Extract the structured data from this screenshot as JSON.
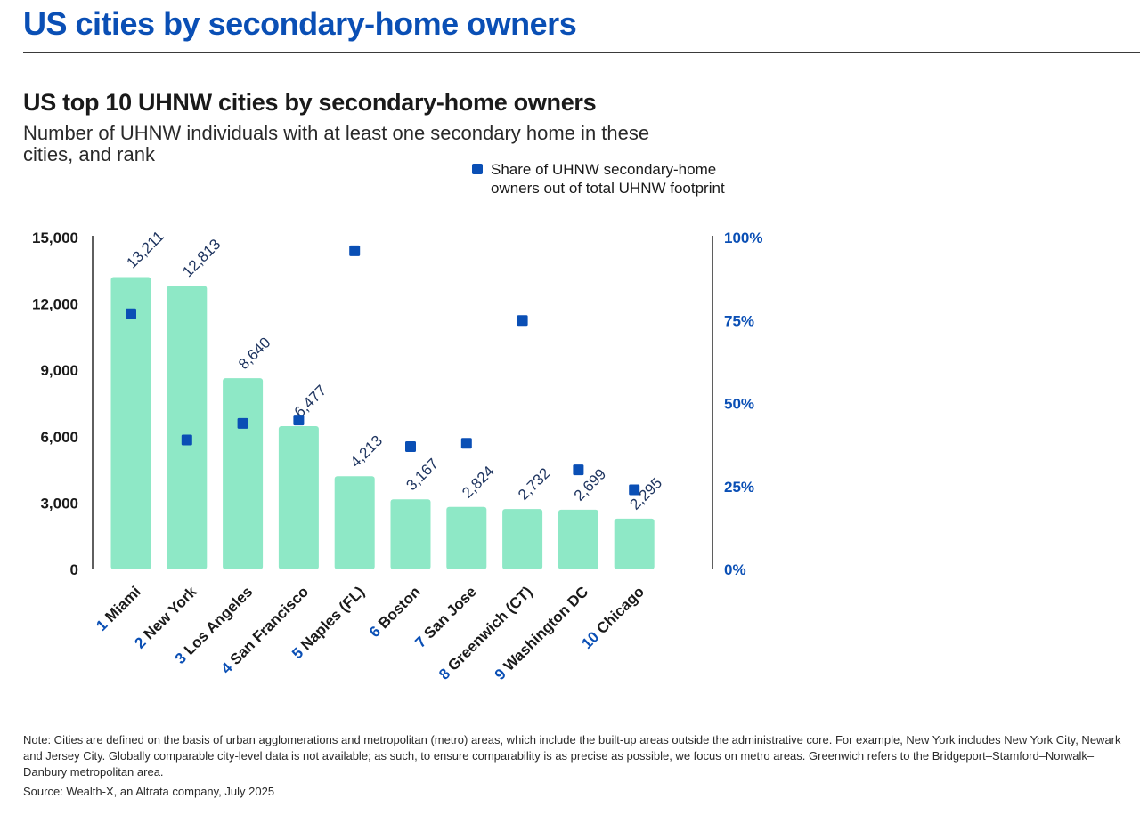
{
  "page": {
    "title": "US cities by secondary-home owners",
    "note": "Note: Cities are defined on the basis of urban agglomerations and metropolitan (metro) areas, which include the built-up areas outside the administrative core. For example, New York includes New York City, Newark and Jersey City. Globally comparable city-level data is not available; as such, to ensure comparability is as precise as possible, we focus on metro areas. Greenwich refers to the Bridgeport–Stamford–Norwalk–Danbury metropolitan area.",
    "source": "Source: Wealth-X, an Altrata company, July 2025"
  },
  "chart_data": {
    "type": "bar",
    "title": "US top 10 UHNW cities by secondary-home owners",
    "subtitle": "Number of UHNW individuals with at least one secondary home in these cities, and rank",
    "categories": [
      "Miami",
      "New York",
      "Los Angeles",
      "San Francisco",
      "Naples (FL)",
      "Boston",
      "San Jose",
      "Greenwich (CT)",
      "Washington DC",
      "Chicago"
    ],
    "ranks": [
      "1",
      "2",
      "3",
      "4",
      "5",
      "6",
      "7",
      "8",
      "9",
      "10"
    ],
    "series": [
      {
        "name": "Number of UHNW secondary-home owners",
        "axis": "left",
        "values": [
          13211,
          12813,
          8640,
          6477,
          4213,
          3167,
          2824,
          2732,
          2699,
          2295
        ],
        "labels": [
          "13,211",
          "12,813",
          "8,640",
          "6,477",
          "4,213",
          "3,167",
          "2,824",
          "2,732",
          "2,699",
          "2,295"
        ]
      },
      {
        "name": "Share of UHNW secondary-home owners out of total UHNW footprint",
        "axis": "right",
        "values": [
          77,
          39,
          44,
          45,
          96,
          37,
          38,
          75,
          30,
          24
        ]
      }
    ],
    "y_left": {
      "lim": [
        0,
        15000
      ],
      "ticks": [
        0,
        3000,
        6000,
        9000,
        12000,
        15000
      ],
      "tick_labels": [
        "0",
        "3,000",
        "6,000",
        "9,000",
        "12,000",
        "15,000"
      ]
    },
    "y_right": {
      "lim": [
        0,
        100
      ],
      "ticks": [
        0,
        25,
        50,
        75,
        100
      ],
      "tick_labels": [
        "0%",
        "25%",
        "50%",
        "75%",
        "100%"
      ]
    },
    "legend": {
      "label_line1": "Share of UHNW secondary-home",
      "label_line2": "owners out of total UHNW footprint",
      "placement": "top-right"
    },
    "colors": {
      "bar": "#8ee8c6",
      "marker": "#0a4fb5",
      "rank": "#0a4fb5",
      "axis": "#2a2a2a",
      "right_tick": "#0a4fb5"
    }
  }
}
